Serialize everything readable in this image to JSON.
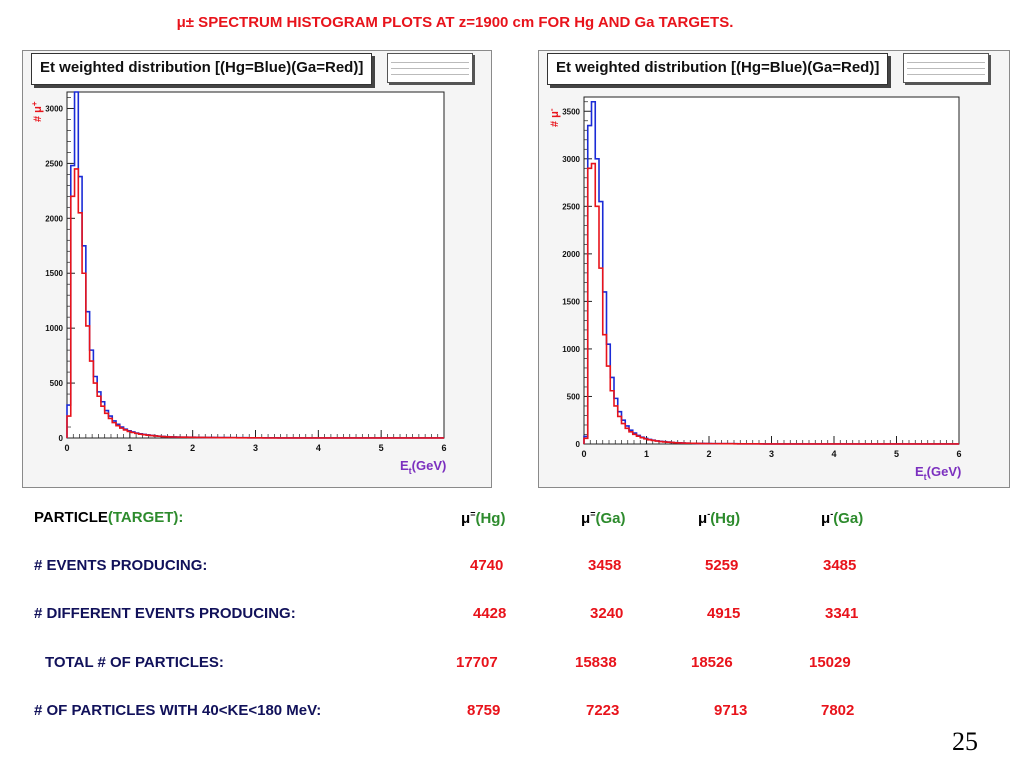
{
  "title": "μ±   SPECTRUM HISTOGRAM PLOTS AT z=1900 cm  FOR Hg AND Ga  TARGETS.",
  "page_number": "25",
  "colors": {
    "hg": "#1a2bd6",
    "ga": "#e8131b",
    "title": "#e8131b",
    "row_label": "#11115a",
    "values": "#e8131b",
    "target": "#2d8b2d"
  },
  "chart_data": [
    {
      "type": "line",
      "title": "Et weighted distribution [(Hg=Blue)(Ga=Red)]",
      "ylabel_main": "#",
      "ylabel_particle": "μ",
      "ylabel_sup": "+",
      "xlabel_main": "E",
      "xlabel_sub": "t",
      "xlabel_unit": "(GeV)",
      "xlim": [
        0,
        6
      ],
      "ylim": [
        0,
        3150
      ],
      "xticks": [
        0,
        1,
        2,
        3,
        4,
        5,
        6
      ],
      "yticks": [
        0,
        500,
        1000,
        1500,
        2000,
        2500,
        3000
      ],
      "bin_width": 0.06,
      "series": [
        {
          "name": "Hg",
          "color": "#1a2bd6",
          "values": [
            300,
            2480,
            3150,
            2380,
            1750,
            1150,
            800,
            560,
            420,
            330,
            250,
            200,
            155,
            125,
            100,
            80,
            65,
            55,
            45,
            38,
            32,
            28,
            24,
            20,
            17,
            14,
            12,
            11,
            10,
            9,
            8,
            8,
            7,
            7,
            6,
            6,
            5,
            5,
            5,
            4,
            4,
            4,
            4,
            3,
            3,
            3,
            3,
            3,
            2,
            2,
            2,
            2,
            2,
            2,
            2,
            2,
            1,
            1,
            1,
            1,
            1,
            1,
            1,
            1,
            1,
            1,
            1,
            1,
            1,
            1,
            1,
            1,
            1,
            1,
            1,
            1,
            1,
            1,
            1,
            1,
            1,
            1,
            1,
            1,
            1,
            1,
            1,
            1,
            1,
            1,
            1,
            1,
            1,
            1,
            1,
            1,
            1,
            1,
            1,
            1
          ]
        },
        {
          "name": "Ga",
          "color": "#e8131b",
          "values": [
            200,
            2200,
            2450,
            2050,
            1500,
            1020,
            700,
            500,
            380,
            290,
            225,
            178,
            140,
            112,
            90,
            73,
            60,
            50,
            42,
            35,
            30,
            26,
            22,
            19,
            16,
            13,
            11,
            10,
            9,
            8,
            7,
            7,
            6,
            6,
            5,
            5,
            5,
            4,
            4,
            4,
            3,
            3,
            3,
            3,
            3,
            2,
            2,
            2,
            2,
            2,
            2,
            2,
            1,
            1,
            1,
            1,
            1,
            1,
            1,
            1,
            1,
            1,
            1,
            1,
            1,
            1,
            1,
            1,
            1,
            1,
            1,
            1,
            1,
            1,
            1,
            1,
            1,
            1,
            1,
            1,
            1,
            1,
            1,
            1,
            1,
            1,
            1,
            1,
            1,
            1,
            1,
            1,
            1,
            1,
            1,
            1,
            1,
            1,
            1,
            1
          ]
        }
      ]
    },
    {
      "type": "line",
      "title": "Et weighted distribution [(Hg=Blue)(Ga=Red)]",
      "ylabel_main": "#",
      "ylabel_particle": "μ",
      "ylabel_sup": "-",
      "xlabel_main": "E",
      "xlabel_sub": "t",
      "xlabel_unit": "(GeV)",
      "xlim": [
        0,
        6
      ],
      "ylim": [
        0,
        3650
      ],
      "xticks": [
        0,
        1,
        2,
        3,
        4,
        5,
        6
      ],
      "yticks": [
        0,
        500,
        1000,
        1500,
        2000,
        2500,
        3000,
        3500
      ],
      "bin_width": 0.06,
      "series": [
        {
          "name": "Hg",
          "color": "#1a2bd6",
          "values": [
            80,
            3350,
            3600,
            3000,
            2550,
            1600,
            1050,
            700,
            480,
            340,
            250,
            190,
            145,
            115,
            90,
            72,
            58,
            48,
            40,
            33,
            28,
            24,
            20,
            17,
            14,
            12,
            10,
            9,
            8,
            7,
            6,
            6,
            5,
            5,
            4,
            4,
            4,
            3,
            3,
            3,
            3,
            2,
            2,
            2,
            2,
            2,
            2,
            2,
            1,
            1,
            1,
            1,
            1,
            1,
            1,
            1,
            1,
            1,
            1,
            1,
            1,
            1,
            1,
            1,
            1,
            1,
            1,
            1,
            1,
            1,
            1,
            1,
            1,
            1,
            1,
            1,
            1,
            1,
            1,
            1,
            1,
            1,
            1,
            1,
            1,
            1,
            1,
            1,
            1,
            1,
            1,
            1,
            1,
            1,
            1,
            1,
            1,
            1,
            1,
            1
          ]
        },
        {
          "name": "Ga",
          "color": "#e8131b",
          "values": [
            60,
            2900,
            2950,
            2500,
            1850,
            1150,
            820,
            560,
            400,
            290,
            215,
            165,
            128,
            102,
            82,
            66,
            54,
            44,
            37,
            31,
            26,
            22,
            19,
            16,
            13,
            11,
            10,
            9,
            8,
            7,
            6,
            5,
            5,
            4,
            4,
            4,
            3,
            3,
            3,
            3,
            2,
            2,
            2,
            2,
            2,
            2,
            2,
            1,
            1,
            1,
            1,
            1,
            1,
            1,
            1,
            1,
            1,
            1,
            1,
            1,
            1,
            1,
            1,
            1,
            1,
            1,
            1,
            1,
            1,
            1,
            1,
            1,
            1,
            1,
            1,
            1,
            1,
            1,
            1,
            1,
            1,
            1,
            1,
            1,
            1,
            1,
            1,
            1,
            1,
            1,
            1,
            1,
            1,
            1,
            1,
            1,
            1,
            1,
            1,
            1
          ]
        }
      ]
    }
  ],
  "table": {
    "header": {
      "particle": "PARTICLE",
      "target": "(TARGET):",
      "cols": [
        {
          "particle": "μ",
          "sup": "=",
          "target": "(Hg)"
        },
        {
          "particle": "μ",
          "sup": "=",
          "target": "(Ga)"
        },
        {
          "particle": "μ",
          "sup": "-",
          "target": "(Hg)"
        },
        {
          "particle": "μ",
          "sup": "-",
          "target": "(Ga)"
        }
      ]
    },
    "rows": [
      {
        "label": "# EVENTS PRODUCING:",
        "values": [
          "4740",
          "3458",
          "5259",
          "3485"
        ]
      },
      {
        "label": "# DIFFERENT EVENTS  PRODUCING:",
        "values": [
          "4428",
          "3240",
          "4915",
          "3341"
        ]
      },
      {
        "label": "TOTAL # OF PARTICLES:",
        "values": [
          "17707",
          "15838",
          "18526",
          "15029"
        ]
      },
      {
        "label": "# OF PARTICLES WITH 40<KE<180 MeV:",
        "values": [
          "8759",
          "7223",
          "9713",
          "7802"
        ]
      }
    ]
  }
}
